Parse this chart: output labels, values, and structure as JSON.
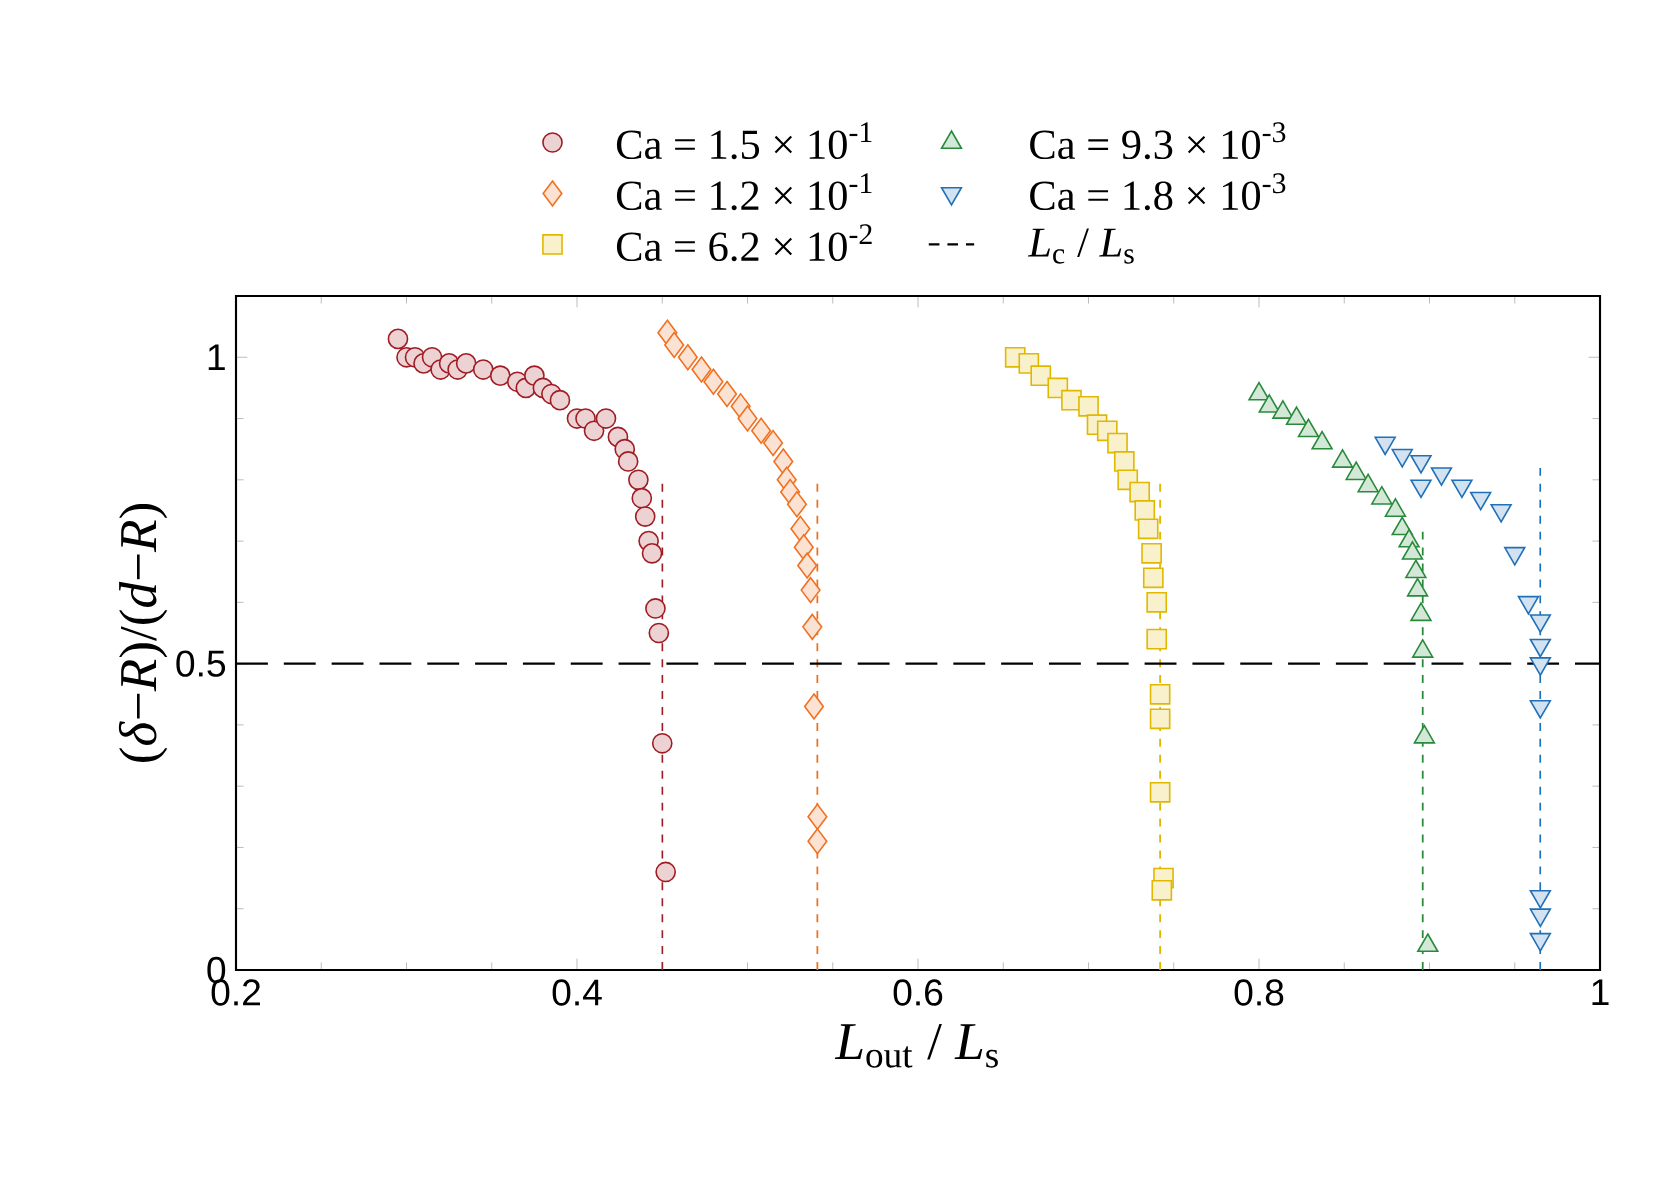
{
  "chart_data": {
    "type": "scatter",
    "xlabel": "*L*$_{out}$ / *L*$_{s}$",
    "ylabel": "(*δ*−*R*)/(*d*−*R*)",
    "xlim": [
      0.2,
      1
    ],
    "ylim": [
      0,
      1.1
    ],
    "xticks": [
      0.2,
      0.4,
      0.6,
      0.8,
      1
    ],
    "yticks": [
      0,
      0.5,
      1
    ],
    "legend": "top",
    "series": [
      {
        "name": "Ca = 1.5 × 10$^{-1}$",
        "color": "#a01c24",
        "marker": "circle",
        "x": [
          0.295,
          0.3,
          0.305,
          0.31,
          0.315,
          0.32,
          0.325,
          0.33,
          0.335,
          0.345,
          0.355,
          0.365,
          0.37,
          0.375,
          0.38,
          0.385,
          0.39,
          0.4,
          0.405,
          0.41,
          0.417,
          0.424,
          0.428,
          0.43,
          0.436,
          0.438,
          0.44,
          0.442,
          0.444,
          0.446,
          0.448,
          0.45,
          0.452
        ],
        "values": [
          1.03,
          1.0,
          1.0,
          0.99,
          1.0,
          0.98,
          0.99,
          0.98,
          0.99,
          0.98,
          0.97,
          0.96,
          0.95,
          0.97,
          0.95,
          0.94,
          0.93,
          0.9,
          0.9,
          0.88,
          0.9,
          0.87,
          0.85,
          0.83,
          0.8,
          0.77,
          0.74,
          0.7,
          0.68,
          0.59,
          0.55,
          0.37,
          0.16
        ]
      },
      {
        "name": "Ca = 1.2 × 10$^{-1}$",
        "color": "#f07020",
        "marker": "diamond",
        "x": [
          0.453,
          0.457,
          0.465,
          0.473,
          0.48,
          0.488,
          0.496,
          0.5,
          0.508,
          0.515,
          0.521,
          0.523,
          0.525,
          0.529,
          0.531,
          0.533,
          0.535,
          0.537,
          0.538,
          0.539,
          0.541,
          0.541
        ],
        "values": [
          1.04,
          1.02,
          1.0,
          0.98,
          0.96,
          0.94,
          0.92,
          0.9,
          0.88,
          0.86,
          0.83,
          0.8,
          0.78,
          0.76,
          0.72,
          0.69,
          0.66,
          0.62,
          0.56,
          0.43,
          0.25,
          0.21
        ]
      },
      {
        "name": "Ca = 6.2 × 10$^{-2}$",
        "color": "#e0b800",
        "marker": "square",
        "x": [
          0.657,
          0.665,
          0.672,
          0.682,
          0.69,
          0.7,
          0.705,
          0.711,
          0.717,
          0.721,
          0.723,
          0.73,
          0.733,
          0.735,
          0.737,
          0.738,
          0.74,
          0.74,
          0.742,
          0.742,
          0.742,
          0.744,
          0.743
        ],
        "values": [
          1.0,
          0.99,
          0.97,
          0.95,
          0.93,
          0.92,
          0.89,
          0.88,
          0.86,
          0.83,
          0.8,
          0.78,
          0.75,
          0.72,
          0.68,
          0.64,
          0.6,
          0.54,
          0.45,
          0.41,
          0.29,
          0.15,
          0.13
        ]
      },
      {
        "name": "Ca = 9.3 × 10$^{-3}$",
        "color": "#2a8a3c",
        "marker": "triangle",
        "x": [
          0.8,
          0.806,
          0.814,
          0.822,
          0.829,
          0.837,
          0.849,
          0.857,
          0.864,
          0.872,
          0.88,
          0.884,
          0.888,
          0.89,
          0.892,
          0.893,
          0.895,
          0.896,
          0.897,
          0.899
        ],
        "values": [
          0.94,
          0.92,
          0.91,
          0.9,
          0.88,
          0.86,
          0.83,
          0.81,
          0.79,
          0.77,
          0.75,
          0.72,
          0.7,
          0.68,
          0.65,
          0.62,
          0.58,
          0.52,
          0.38,
          0.04
        ]
      },
      {
        "name": "Ca = 1.8 × 10$^{-3}$",
        "color": "#2070b8",
        "marker": "triangle-down",
        "x": [
          0.874,
          0.884,
          0.895,
          0.895,
          0.907,
          0.919,
          0.93,
          0.942,
          0.95,
          0.958,
          0.965,
          0.965,
          0.965,
          0.965,
          0.965,
          0.965,
          0.965
        ],
        "values": [
          0.86,
          0.84,
          0.83,
          0.79,
          0.81,
          0.79,
          0.77,
          0.75,
          0.68,
          0.6,
          0.57,
          0.53,
          0.5,
          0.43,
          0.12,
          0.09,
          0.05
        ]
      },
      {
        "type": "line",
        "line_style": "dashed",
        "color": "#a01c24",
        "x": [
          0.45,
          0.45
        ],
        "values": [
          0,
          0.8
        ]
      },
      {
        "type": "line",
        "line_style": "dashed",
        "color": "#f07020",
        "x": [
          0.541,
          0.541
        ],
        "values": [
          0,
          0.8
        ]
      },
      {
        "type": "line",
        "line_style": "dashed",
        "color": "#e0b800",
        "x": [
          0.742,
          0.742
        ],
        "values": [
          0,
          0.8
        ]
      },
      {
        "type": "line",
        "line_style": "dashed",
        "color": "#2a8a3c",
        "x": [
          0.896,
          0.896
        ],
        "values": [
          0,
          0.72
        ]
      },
      {
        "type": "line",
        "line_style": "dashed",
        "color": "#2070b8",
        "x": [
          0.965,
          0.965
        ],
        "values": [
          0,
          0.82
        ]
      }
    ],
    "ref_lines": [
      {
        "axis": "y",
        "value": 0.5,
        "label": "*L*$_{c}$ / *L*$_{s}$",
        "color": "#000000",
        "line_style": "dashed"
      }
    ]
  }
}
